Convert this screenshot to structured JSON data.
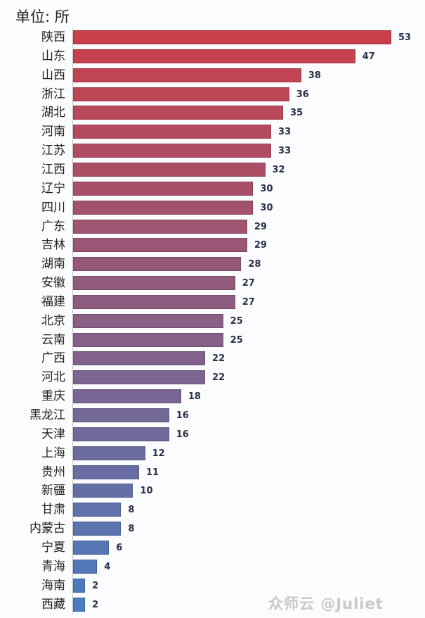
{
  "chart_data": {
    "type": "bar",
    "orientation": "horizontal",
    "title": "",
    "unit_label": "单位: 所",
    "xlabel": "",
    "ylabel": "",
    "grid": false,
    "legend": null,
    "categories": [
      "陕西",
      "山东",
      "山西",
      "浙江",
      "湖北",
      "河南",
      "江苏",
      "江西",
      "辽宁",
      "四川",
      "广东",
      "吉林",
      "湖南",
      "安徽",
      "福建",
      "北京",
      "云南",
      "广西",
      "河北",
      "重庆",
      "黑龙江",
      "天津",
      "上海",
      "贵州",
      "新疆",
      "甘肃",
      "内蒙古",
      "宁夏",
      "青海",
      "海南",
      "西藏"
    ],
    "values": [
      53,
      47,
      38,
      36,
      35,
      33,
      33,
      32,
      30,
      30,
      29,
      29,
      28,
      27,
      27,
      25,
      25,
      22,
      22,
      18,
      16,
      16,
      12,
      11,
      10,
      8,
      8,
      6,
      4,
      2,
      2
    ],
    "xlim": [
      0,
      53
    ],
    "color_gradient": [
      "#c9404a",
      "#4a7cc0"
    ]
  },
  "watermark": "众师云 @Juliet"
}
